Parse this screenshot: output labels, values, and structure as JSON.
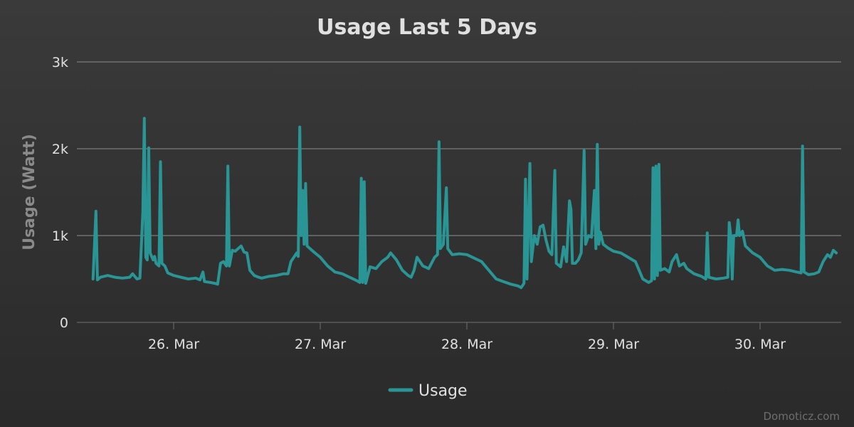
{
  "chart_data": {
    "type": "line",
    "title": "Usage Last 5 Days",
    "xlabel": "",
    "ylabel": "Usage (Watt)",
    "x_start": "25 Mar 12:00",
    "x_end": "30 Mar 12:00",
    "ylim": [
      0,
      3000
    ],
    "y_ticks": [
      {
        "value": 0,
        "label": "0"
      },
      {
        "value": 1000,
        "label": "1k"
      },
      {
        "value": 2000,
        "label": "2k"
      },
      {
        "value": 3000,
        "label": "3k"
      }
    ],
    "x_ticks": [
      {
        "day": 1,
        "label": "26. Mar"
      },
      {
        "day": 2,
        "label": "27. Mar"
      },
      {
        "day": 3,
        "label": "28. Mar"
      },
      {
        "day": 4,
        "label": "29. Mar"
      },
      {
        "day": 5,
        "label": "30. Mar"
      }
    ],
    "grid": true,
    "legend": "bottom-center",
    "series": [
      {
        "name": "Usage",
        "color": "#2a9595",
        "points": [
          [
            25.45,
            500
          ],
          [
            25.47,
            1280
          ],
          [
            25.48,
            490
          ],
          [
            25.5,
            520
          ],
          [
            25.55,
            540
          ],
          [
            25.6,
            520
          ],
          [
            25.65,
            510
          ],
          [
            25.7,
            520
          ],
          [
            25.72,
            560
          ],
          [
            25.75,
            500
          ],
          [
            25.77,
            510
          ],
          [
            25.79,
            1270
          ],
          [
            25.8,
            2350
          ],
          [
            25.81,
            750
          ],
          [
            25.82,
            720
          ],
          [
            25.83,
            2010
          ],
          [
            25.84,
            800
          ],
          [
            25.86,
            720
          ],
          [
            25.87,
            760
          ],
          [
            25.88,
            680
          ],
          [
            25.9,
            650
          ],
          [
            25.91,
            1850
          ],
          [
            25.92,
            680
          ],
          [
            25.94,
            650
          ],
          [
            25.96,
            570
          ],
          [
            26.0,
            540
          ],
          [
            26.05,
            520
          ],
          [
            26.1,
            500
          ],
          [
            26.15,
            510
          ],
          [
            26.18,
            490
          ],
          [
            26.2,
            580
          ],
          [
            26.21,
            470
          ],
          [
            26.25,
            460
          ],
          [
            26.28,
            450
          ],
          [
            26.3,
            440
          ],
          [
            26.32,
            680
          ],
          [
            26.34,
            700
          ],
          [
            26.36,
            650
          ],
          [
            26.37,
            1800
          ],
          [
            26.38,
            650
          ],
          [
            26.4,
            830
          ],
          [
            26.42,
            820
          ],
          [
            26.44,
            850
          ],
          [
            26.46,
            880
          ],
          [
            26.48,
            810
          ],
          [
            26.5,
            800
          ],
          [
            26.52,
            600
          ],
          [
            26.55,
            540
          ],
          [
            26.58,
            520
          ],
          [
            26.6,
            510
          ],
          [
            26.65,
            530
          ],
          [
            26.7,
            540
          ],
          [
            26.75,
            560
          ],
          [
            26.78,
            560
          ],
          [
            26.8,
            700
          ],
          [
            26.82,
            750
          ],
          [
            26.84,
            800
          ],
          [
            26.85,
            760
          ],
          [
            26.86,
            2250
          ],
          [
            26.87,
            1000
          ],
          [
            26.88,
            1520
          ],
          [
            26.89,
            900
          ],
          [
            26.9,
            1600
          ],
          [
            26.91,
            880
          ],
          [
            26.93,
            850
          ],
          [
            26.95,
            820
          ],
          [
            27.0,
            750
          ],
          [
            27.05,
            650
          ],
          [
            27.1,
            580
          ],
          [
            27.15,
            560
          ],
          [
            27.2,
            520
          ],
          [
            27.25,
            480
          ],
          [
            27.27,
            460
          ],
          [
            27.28,
            1660
          ],
          [
            27.29,
            460
          ],
          [
            27.3,
            1620
          ],
          [
            27.31,
            450
          ],
          [
            27.34,
            640
          ],
          [
            27.38,
            620
          ],
          [
            27.42,
            700
          ],
          [
            27.46,
            750
          ],
          [
            27.48,
            800
          ],
          [
            27.52,
            720
          ],
          [
            27.56,
            600
          ],
          [
            27.6,
            540
          ],
          [
            27.62,
            520
          ],
          [
            27.64,
            600
          ],
          [
            27.66,
            750
          ],
          [
            27.7,
            650
          ],
          [
            27.74,
            620
          ],
          [
            27.78,
            750
          ],
          [
            27.8,
            780
          ],
          [
            27.81,
            2080
          ],
          [
            27.82,
            850
          ],
          [
            27.84,
            900
          ],
          [
            27.86,
            1550
          ],
          [
            27.87,
            850
          ],
          [
            27.9,
            780
          ],
          [
            27.95,
            790
          ],
          [
            28.0,
            780
          ],
          [
            28.05,
            740
          ],
          [
            28.1,
            700
          ],
          [
            28.15,
            600
          ],
          [
            28.2,
            500
          ],
          [
            28.25,
            470
          ],
          [
            28.3,
            440
          ],
          [
            28.35,
            420
          ],
          [
            28.37,
            400
          ],
          [
            28.39,
            450
          ],
          [
            28.4,
            1650
          ],
          [
            28.41,
            500
          ],
          [
            28.43,
            1830
          ],
          [
            28.44,
            700
          ],
          [
            28.46,
            1000
          ],
          [
            28.48,
            900
          ],
          [
            28.5,
            1100
          ],
          [
            28.52,
            1120
          ],
          [
            28.54,
            950
          ],
          [
            28.56,
            820
          ],
          [
            28.58,
            780
          ],
          [
            28.6,
            1750
          ],
          [
            28.61,
            680
          ],
          [
            28.64,
            640
          ],
          [
            28.66,
            870
          ],
          [
            28.68,
            700
          ],
          [
            28.7,
            1400
          ],
          [
            28.71,
            1300
          ],
          [
            28.72,
            680
          ],
          [
            28.74,
            680
          ],
          [
            28.76,
            720
          ],
          [
            28.78,
            800
          ],
          [
            28.8,
            1980
          ],
          [
            28.81,
            900
          ],
          [
            28.83,
            1000
          ],
          [
            28.85,
            980
          ],
          [
            28.87,
            1520
          ],
          [
            28.88,
            850
          ],
          [
            28.89,
            2050
          ],
          [
            28.9,
            900
          ],
          [
            28.91,
            1040
          ],
          [
            28.93,
            900
          ],
          [
            28.96,
            860
          ],
          [
            29.0,
            820
          ],
          [
            29.05,
            800
          ],
          [
            29.1,
            750
          ],
          [
            29.15,
            700
          ],
          [
            29.18,
            580
          ],
          [
            29.2,
            500
          ],
          [
            29.24,
            460
          ],
          [
            29.26,
            480
          ],
          [
            29.27,
            1780
          ],
          [
            29.28,
            500
          ],
          [
            29.29,
            1800
          ],
          [
            29.3,
            540
          ],
          [
            29.31,
            1820
          ],
          [
            29.32,
            600
          ],
          [
            29.35,
            620
          ],
          [
            29.38,
            580
          ],
          [
            29.4,
            700
          ],
          [
            29.43,
            780
          ],
          [
            29.45,
            650
          ],
          [
            29.48,
            680
          ],
          [
            29.5,
            620
          ],
          [
            29.55,
            560
          ],
          [
            29.6,
            530
          ],
          [
            29.63,
            500
          ],
          [
            29.64,
            1030
          ],
          [
            29.65,
            520
          ],
          [
            29.7,
            500
          ],
          [
            29.75,
            510
          ],
          [
            29.78,
            520
          ],
          [
            29.79,
            1150
          ],
          [
            29.8,
            1000
          ],
          [
            29.81,
            500
          ],
          [
            29.82,
            1000
          ],
          [
            29.84,
            1000
          ],
          [
            29.85,
            1180
          ],
          [
            29.86,
            1000
          ],
          [
            29.88,
            1050
          ],
          [
            29.9,
            880
          ],
          [
            29.95,
            800
          ],
          [
            30.0,
            750
          ],
          [
            30.05,
            650
          ],
          [
            30.1,
            600
          ],
          [
            30.15,
            610
          ],
          [
            30.2,
            600
          ],
          [
            30.25,
            580
          ],
          [
            30.28,
            570
          ],
          [
            30.29,
            2030
          ],
          [
            30.3,
            580
          ],
          [
            30.33,
            550
          ],
          [
            30.37,
            560
          ],
          [
            30.4,
            580
          ],
          [
            30.43,
            700
          ],
          [
            30.46,
            780
          ],
          [
            30.48,
            750
          ],
          [
            30.5,
            830
          ],
          [
            30.52,
            800
          ]
        ]
      }
    ]
  },
  "credits": "Domoticz.com"
}
